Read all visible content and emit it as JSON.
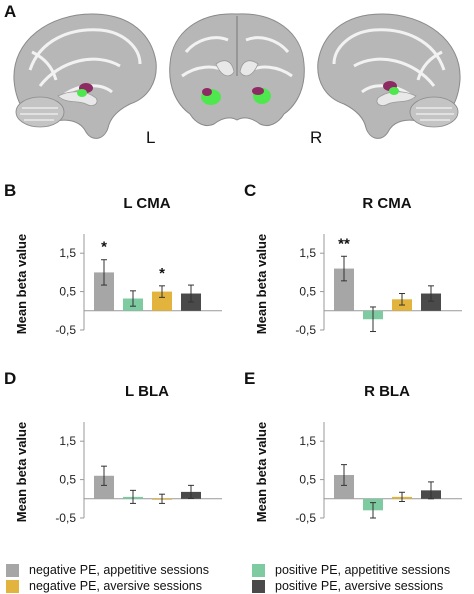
{
  "panels": {
    "A": "A",
    "B": "B",
    "C": "C",
    "D": "D",
    "E": "E"
  },
  "brain": {
    "left_label": "L",
    "right_label": "R",
    "gray_color": "#b7b7b7",
    "white_color": "#f2f2f2",
    "purple_color": "#8e2a63",
    "green_color": "#4ee84e"
  },
  "colors": {
    "negative_appetitive": "#a6a6a6",
    "positive_appetitive": "#7ecba1",
    "negative_aversive": "#e2b43e",
    "positive_aversive": "#4a4a4a"
  },
  "chart_data": [
    {
      "type": "bar",
      "title": "L CMA",
      "ylabel": "Mean beta value",
      "ylim": [
        -0.5,
        2.0
      ],
      "yticks": [
        "1,5",
        "0,5",
        "-0,5"
      ],
      "ytick_values": [
        1.5,
        0.5,
        -0.5
      ],
      "series": [
        {
          "name": "negative PE, appetitive sessions",
          "value": 1.0,
          "error": 0.33,
          "star": "*"
        },
        {
          "name": "positive PE, appetitive sessions",
          "value": 0.32,
          "error": 0.2,
          "star": ""
        },
        {
          "name": "negative PE, aversive sessions",
          "value": 0.5,
          "error": 0.15,
          "star": "*"
        },
        {
          "name": "positive PE, aversive sessions",
          "value": 0.45,
          "error": 0.22,
          "star": ""
        }
      ]
    },
    {
      "type": "bar",
      "title": "R CMA",
      "ylabel": "Mean beta value",
      "ylim": [
        -0.5,
        2.0
      ],
      "yticks": [
        "1,5",
        "0,5",
        "-0,5"
      ],
      "ytick_values": [
        1.5,
        0.5,
        -0.5
      ],
      "series": [
        {
          "name": "negative PE, appetitive sessions",
          "value": 1.1,
          "error": 0.32,
          "star": "**"
        },
        {
          "name": "positive PE, appetitive sessions",
          "value": -0.22,
          "error": 0.32,
          "star": ""
        },
        {
          "name": "negative PE, aversive sessions",
          "value": 0.3,
          "error": 0.15,
          "star": ""
        },
        {
          "name": "positive PE, aversive sessions",
          "value": 0.45,
          "error": 0.2,
          "star": ""
        }
      ]
    },
    {
      "type": "bar",
      "title": "L BLA",
      "ylabel": "Mean beta value",
      "ylim": [
        -0.5,
        2.0
      ],
      "yticks": [
        "1,5",
        "0,5",
        "-0,5"
      ],
      "ytick_values": [
        1.5,
        0.5,
        -0.5
      ],
      "series": [
        {
          "name": "negative PE, appetitive sessions",
          "value": 0.6,
          "error": 0.25,
          "star": ""
        },
        {
          "name": "positive PE, appetitive sessions",
          "value": 0.05,
          "error": 0.17,
          "star": ""
        },
        {
          "name": "negative PE, aversive sessions",
          "value": 0.0,
          "error": 0.12,
          "star": ""
        },
        {
          "name": "positive PE, aversive sessions",
          "value": 0.18,
          "error": 0.17,
          "star": ""
        }
      ]
    },
    {
      "type": "bar",
      "title": "R BLA",
      "ylabel": "Mean beta value",
      "ylim": [
        -0.5,
        2.0
      ],
      "yticks": [
        "1,5",
        "0,5",
        "-0,5"
      ],
      "ytick_values": [
        1.5,
        0.5,
        -0.5
      ],
      "series": [
        {
          "name": "negative PE, appetitive sessions",
          "value": 0.62,
          "error": 0.27,
          "star": ""
        },
        {
          "name": "positive PE, appetitive sessions",
          "value": -0.3,
          "error": 0.2,
          "star": ""
        },
        {
          "name": "negative PE, aversive sessions",
          "value": 0.05,
          "error": 0.12,
          "star": ""
        },
        {
          "name": "positive PE, aversive sessions",
          "value": 0.22,
          "error": 0.22,
          "star": ""
        }
      ]
    }
  ],
  "legend": [
    {
      "label": "negative PE, appetitive sessions",
      "color": "#a6a6a6"
    },
    {
      "label": "positive PE, appetitive sessions",
      "color": "#7ecba1"
    },
    {
      "label": "negative PE, aversive sessions",
      "color": "#e2b43e"
    },
    {
      "label": "positive PE, aversive sessions",
      "color": "#4a4a4a"
    }
  ]
}
